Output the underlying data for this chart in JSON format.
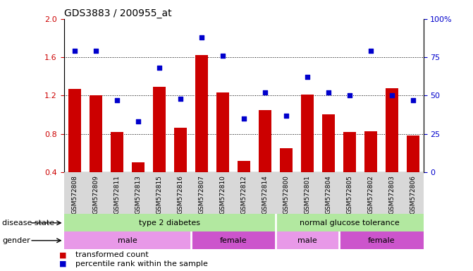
{
  "title": "GDS3883 / 200955_at",
  "samples": [
    "GSM572808",
    "GSM572809",
    "GSM572811",
    "GSM572813",
    "GSM572815",
    "GSM572816",
    "GSM572807",
    "GSM572810",
    "GSM572812",
    "GSM572814",
    "GSM572800",
    "GSM572801",
    "GSM572804",
    "GSM572805",
    "GSM572802",
    "GSM572803",
    "GSM572806"
  ],
  "bar_values": [
    1.27,
    1.2,
    0.82,
    0.5,
    1.29,
    0.86,
    1.62,
    1.23,
    0.52,
    1.05,
    0.65,
    1.21,
    1.0,
    0.82,
    0.83,
    1.28,
    0.78
  ],
  "scatter_values": [
    79,
    79,
    47,
    33,
    68,
    48,
    88,
    76,
    35,
    52,
    37,
    62,
    52,
    50,
    79,
    50,
    47
  ],
  "ylim_left": [
    0.4,
    2.0
  ],
  "ylim_right": [
    0,
    100
  ],
  "yticks_left": [
    0.4,
    0.8,
    1.2,
    1.6,
    2.0
  ],
  "yticks_right": [
    0,
    25,
    50,
    75,
    100
  ],
  "ytick_labels_right": [
    "0",
    "25",
    "50",
    "75",
    "100%"
  ],
  "bar_color": "#cc0000",
  "scatter_color": "#0000cc",
  "bar_width": 0.6,
  "disease_groups": [
    {
      "label": "type 2 diabetes",
      "start": 0,
      "end": 10,
      "color": "#b2e8a0"
    },
    {
      "label": "normal glucose tolerance",
      "start": 10,
      "end": 17,
      "color": "#b2e8a0"
    }
  ],
  "gender_groups": [
    {
      "label": "male",
      "start": 0,
      "end": 6,
      "color": "#e899e8"
    },
    {
      "label": "female",
      "start": 6,
      "end": 10,
      "color": "#cc55cc"
    },
    {
      "label": "male",
      "start": 10,
      "end": 13,
      "color": "#e899e8"
    },
    {
      "label": "female",
      "start": 13,
      "end": 17,
      "color": "#cc55cc"
    }
  ],
  "legend_items": [
    {
      "label": "transformed count",
      "color": "#cc0000"
    },
    {
      "label": "percentile rank within the sample",
      "color": "#0000cc"
    }
  ],
  "left_axis_color": "#cc0000",
  "right_axis_color": "#0000cc",
  "dotted_lines": [
    0.8,
    1.2,
    1.6
  ],
  "disease_state_label": "disease state",
  "gender_label": "gender",
  "xtick_bg_color": "#d8d8d8"
}
